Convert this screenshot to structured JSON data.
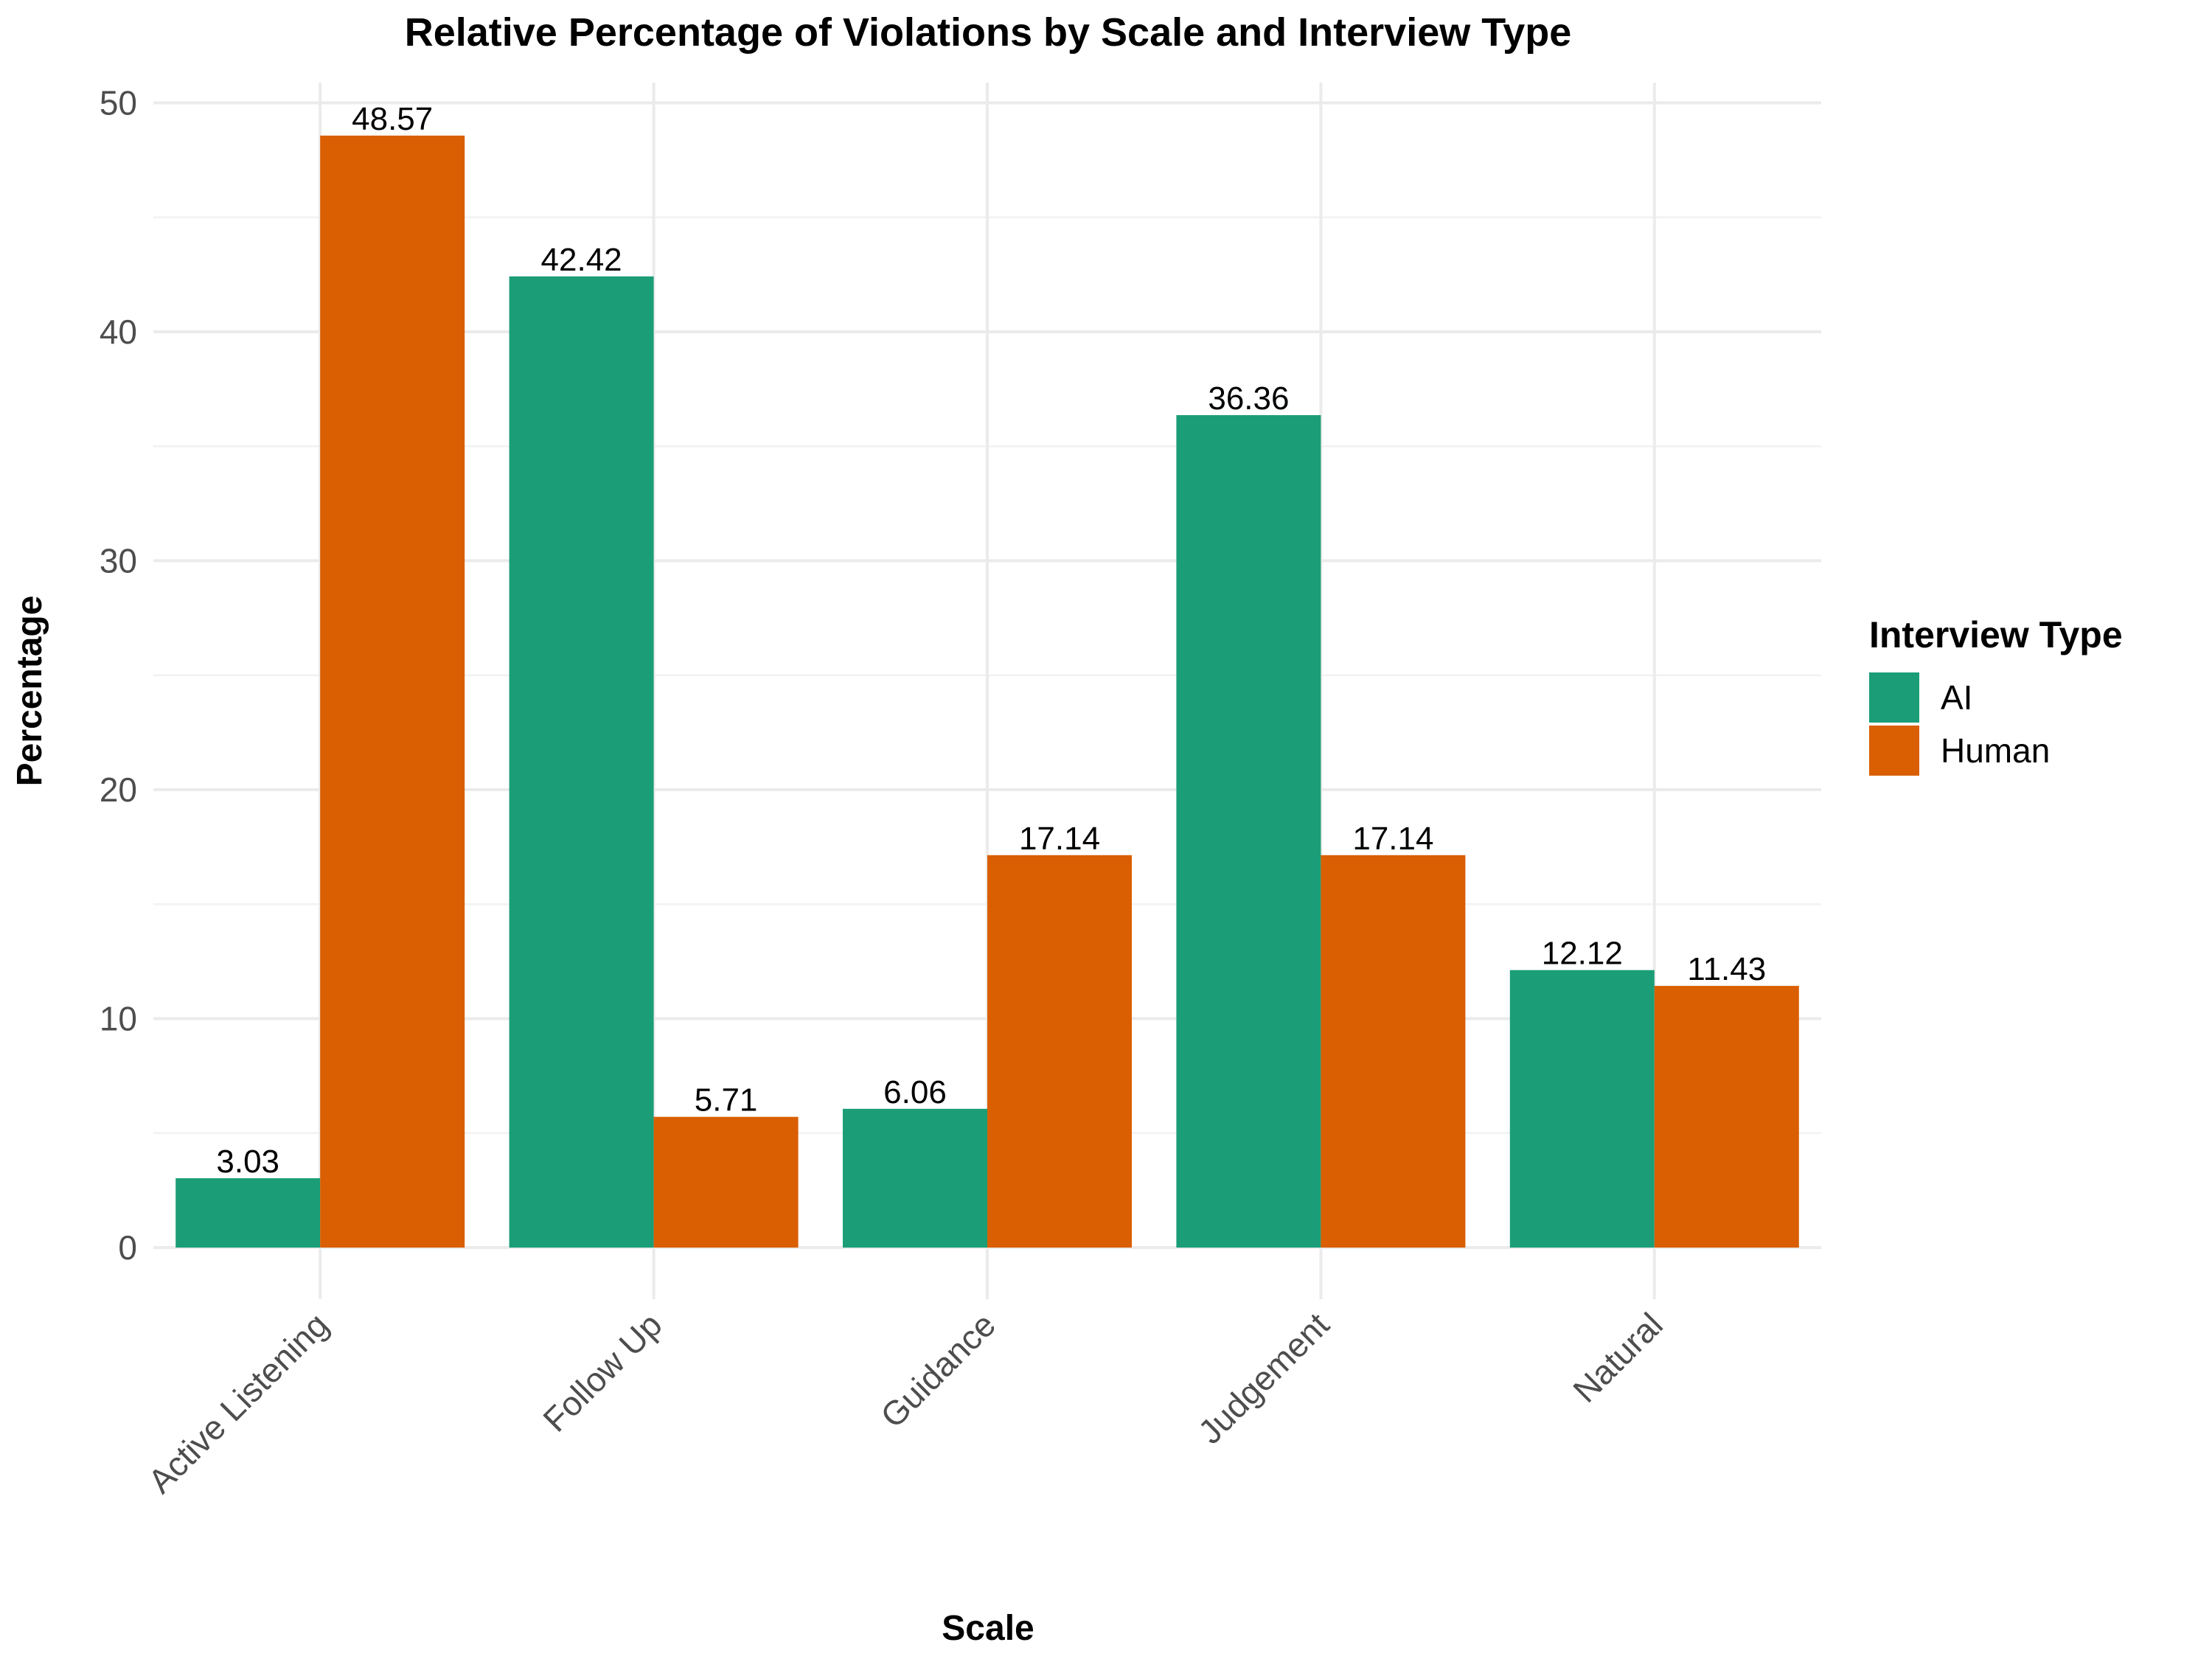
{
  "chart_data": {
    "type": "bar",
    "title": "Relative Percentage of Violations by Scale and Interview Type",
    "xlabel": "Scale",
    "ylabel": "Percentage",
    "categories": [
      "Active Listening",
      "Follow Up",
      "Guidance",
      "Judgement",
      "Natural"
    ],
    "series": [
      {
        "name": "AI",
        "color": "#1b9e77",
        "values": [
          3.03,
          42.42,
          6.06,
          36.36,
          12.12
        ],
        "labels": [
          "3.03",
          "42.42",
          "6.06",
          "36.36",
          "12.12"
        ]
      },
      {
        "name": "Human",
        "color": "#d95f02",
        "values": [
          48.57,
          5.71,
          17.14,
          17.14,
          11.43
        ],
        "labels": [
          "48.57",
          "5.71",
          "17.14",
          "17.14",
          "11.43"
        ]
      }
    ],
    "y_ticks": [
      0,
      10,
      20,
      30,
      40,
      50
    ],
    "ylim": [
      0,
      50
    ],
    "grid": true,
    "legend": {
      "title": "Interview Type",
      "placement": "right"
    }
  }
}
